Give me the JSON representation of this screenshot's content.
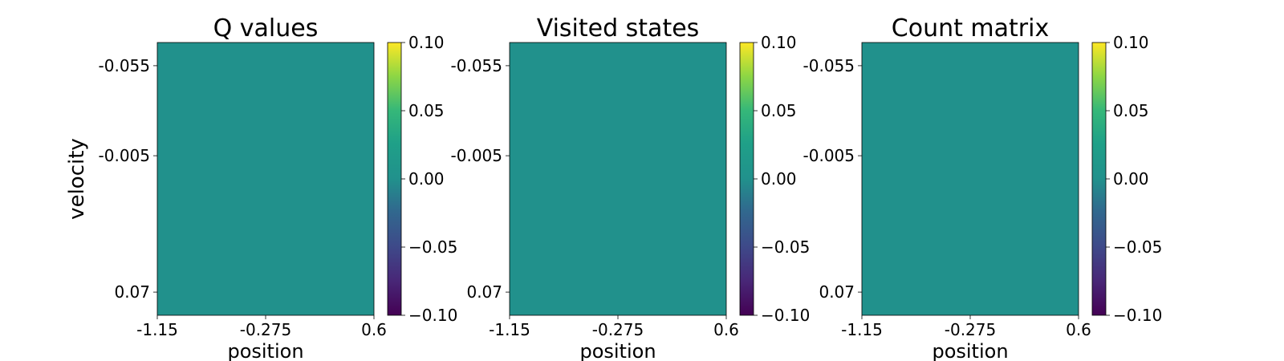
{
  "chart_data": [
    {
      "type": "heatmap",
      "title": "Q values",
      "xlabel": "position",
      "ylabel": "velocity",
      "x_ticks": [
        "-1.15",
        "-0.275",
        "0.6"
      ],
      "y_ticks": [
        "-0.055",
        "-0.005",
        "0.07"
      ],
      "values": [
        [
          0
        ]
      ],
      "colorbar": {
        "min": -0.1,
        "max": 0.1,
        "ticks": [
          "0.10",
          "0.05",
          "0.00",
          "−0.05",
          "−0.10"
        ],
        "colormap": "viridis"
      },
      "fill_color": "#21918c"
    },
    {
      "type": "heatmap",
      "title": "Visited states",
      "xlabel": "position",
      "ylabel": "",
      "x_ticks": [
        "-1.15",
        "-0.275",
        "0.6"
      ],
      "y_ticks": [
        "-0.055",
        "-0.005",
        "0.07"
      ],
      "values": [
        [
          0
        ]
      ],
      "colorbar": {
        "min": -0.1,
        "max": 0.1,
        "ticks": [
          "0.10",
          "0.05",
          "0.00",
          "−0.05",
          "−0.10"
        ],
        "colormap": "viridis"
      },
      "fill_color": "#21918c"
    },
    {
      "type": "heatmap",
      "title": "Count matrix",
      "xlabel": "position",
      "ylabel": "",
      "x_ticks": [
        "-1.15",
        "-0.275",
        "0.6"
      ],
      "y_ticks": [
        "-0.055",
        "-0.005",
        "0.07"
      ],
      "values": [
        [
          0
        ]
      ],
      "colorbar": {
        "min": -0.1,
        "max": 0.1,
        "ticks": [
          "0.10",
          "0.05",
          "0.00",
          "−0.05",
          "−0.10"
        ],
        "colormap": "viridis"
      },
      "fill_color": "#21918c"
    }
  ]
}
